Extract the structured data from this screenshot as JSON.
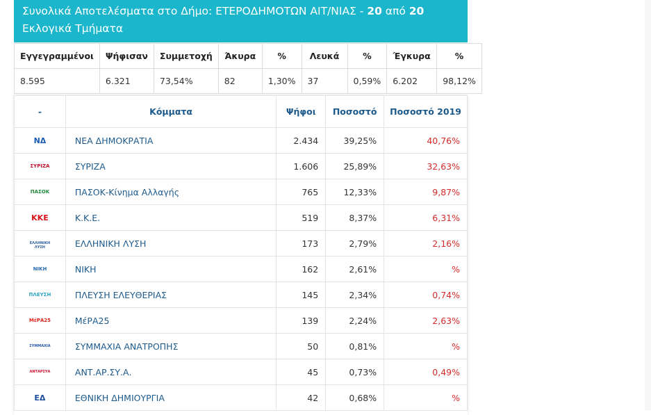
{
  "header": {
    "title": "Συνολικά Αποτελέσματα στο Δήμο: ΕΤΕΡΟΔΗΜΟΤΩΝ ΑΙΤ/ΝΙΑΣ - ",
    "count_a": "20",
    "apo": " από ",
    "count_b": "20",
    "rest": " Εκλογικά Τμήματα"
  },
  "summary": {
    "headers": [
      "Εγγεγραμμένοι",
      "Ψήφισαν",
      "Συμμετοχή",
      "Άκυρα",
      "%",
      "Λευκά",
      "%",
      "Έγκυρα",
      "%"
    ],
    "values": [
      "8.595",
      "6.321",
      "73,54%",
      "82",
      "1,30%",
      "37",
      "0,59%",
      "6.202",
      "98,12%"
    ]
  },
  "parties_table": {
    "headers": [
      "-",
      "Κόμματα",
      "Ψήφοι",
      "Ποσοστό",
      "Ποσοστό 2019"
    ],
    "rows": [
      {
        "logo": "ΝΔ",
        "logo_color": "#1a5bb5",
        "name": "ΝΕΑ ΔΗΜΟΚΡΑΤΙΑ",
        "votes": "2.434",
        "pct": "39,25%",
        "pct2019": "40,76%"
      },
      {
        "logo": "ΣΥΡΙΖΑ",
        "logo_color": "#c4122f",
        "name": "ΣΥΡΙΖΑ",
        "votes": "1.606",
        "pct": "25,89%",
        "pct2019": "32,63%"
      },
      {
        "logo": "ΠΑΣΟΚ",
        "logo_color": "#1e8a3c",
        "name": "ΠΑΣΟΚ-Κίνημα Αλλαγής",
        "votes": "765",
        "pct": "12,33%",
        "pct2019": "9,87%"
      },
      {
        "logo": "ΚΚΕ",
        "logo_color": "#d9121b",
        "name": "Κ.Κ.Ε.",
        "votes": "519",
        "pct": "8,37%",
        "pct2019": "6,31%"
      },
      {
        "logo": "ΕΛΛΗΝΙΚΗ ΛΥΣΗ",
        "logo_color": "#2f5f9a",
        "name": "ΕΛΛΗΝΙΚΗ ΛΥΣΗ",
        "votes": "173",
        "pct": "2,79%",
        "pct2019": "2,16%"
      },
      {
        "logo": "ΝΙΚΗ",
        "logo_color": "#2b6cb0",
        "name": "ΝΙΚΗ",
        "votes": "162",
        "pct": "2,61%",
        "pct2019": "%"
      },
      {
        "logo": "ΠΛΕΥΣΗ",
        "logo_color": "#2aa6c8",
        "name": "ΠΛΕΥΣΗ ΕΛΕΥΘΕΡΙΑΣ",
        "votes": "145",
        "pct": "2,34%",
        "pct2019": "0,74%"
      },
      {
        "logo": "ΜέΡΑ25",
        "logo_color": "#e2231a",
        "name": "ΜέΡΑ25",
        "votes": "139",
        "pct": "2,24%",
        "pct2019": "2,63%"
      },
      {
        "logo": "ΣΥΜΜΑΧΙΑ",
        "logo_color": "#2557a7",
        "name": "ΣΥΜΜΑΧΙΑ ΑΝΑΤΡΟΠΗΣ",
        "votes": "50",
        "pct": "0,81%",
        "pct2019": "%"
      },
      {
        "logo": "ΑΝΤΑΡΣΥΑ",
        "logo_color": "#c8102e",
        "name": "ΑΝΤ.ΑΡ.ΣΥ.Α.",
        "votes": "45",
        "pct": "0,73%",
        "pct2019": "0,49%"
      },
      {
        "logo": "ΕΔ",
        "logo_color": "#1f4e9c",
        "name": "ΕΘΝΙΚΗ ΔΗΜΙΟΥΡΓΙΑ",
        "votes": "42",
        "pct": "0,68%",
        "pct2019": "%"
      }
    ]
  }
}
